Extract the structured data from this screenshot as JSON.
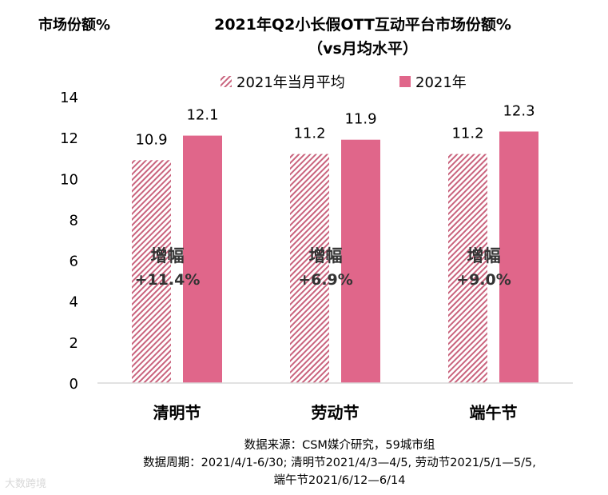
{
  "chart_data": {
    "type": "bar",
    "title_line1": "2021年Q2小长假OTT互动平台市场份额%",
    "title_line2": "（vs月均水平）",
    "ylabel": "市场份额%",
    "categories": [
      "清明节",
      "劳动节",
      "端午节"
    ],
    "series": [
      {
        "name": "2021年当月平均",
        "values": [
          10.9,
          11.2,
          11.2
        ],
        "color": "#c9637d",
        "pattern": "hatch"
      },
      {
        "name": "2021年",
        "values": [
          12.1,
          11.9,
          12.3
        ],
        "color": "#e0668a",
        "pattern": "solid"
      }
    ],
    "ylim": [
      0,
      14
    ],
    "yticks": [
      0,
      2,
      4,
      6,
      8,
      10,
      12,
      14
    ],
    "legend_position": "top",
    "annotation_label": "增幅",
    "increases": [
      "+11.4%",
      "+6.9%",
      "+9.0%"
    ],
    "grid": false
  },
  "footnote": {
    "line1": "数据来源：CSM媒介研究，59城市组",
    "line2": "数据周期：2021/4/1-6/30; 清明节2021/4/3—4/5, 劳动节2021/5/1—5/5,",
    "line3": "端午节2021/6/12—6/14"
  },
  "watermark": "大数跨境"
}
